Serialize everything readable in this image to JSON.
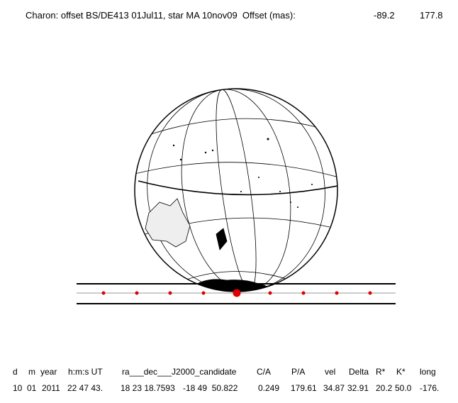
{
  "header": {
    "title": "Charon: offset BS/DE413 01Jul11, star MA 10nov09  Offset (mas):",
    "offset": [
      "-89.2",
      "177.8"
    ]
  },
  "table": {
    "columns": [
      "d",
      "m",
      "year",
      "h:m:s UT",
      "ra___dec___J2000_candidate",
      "C/A",
      "P/A",
      "vel",
      "Delta",
      "R*",
      "K*",
      "long"
    ],
    "rows": [
      [
        "10",
        "01",
        "2011",
        "22 47 43.",
        "18 23 18.7593",
        "-18 49  50.822",
        "0.249",
        "179.61",
        "34.87",
        "32.91",
        "20.2",
        "50.0",
        "-176."
      ]
    ]
  }
}
